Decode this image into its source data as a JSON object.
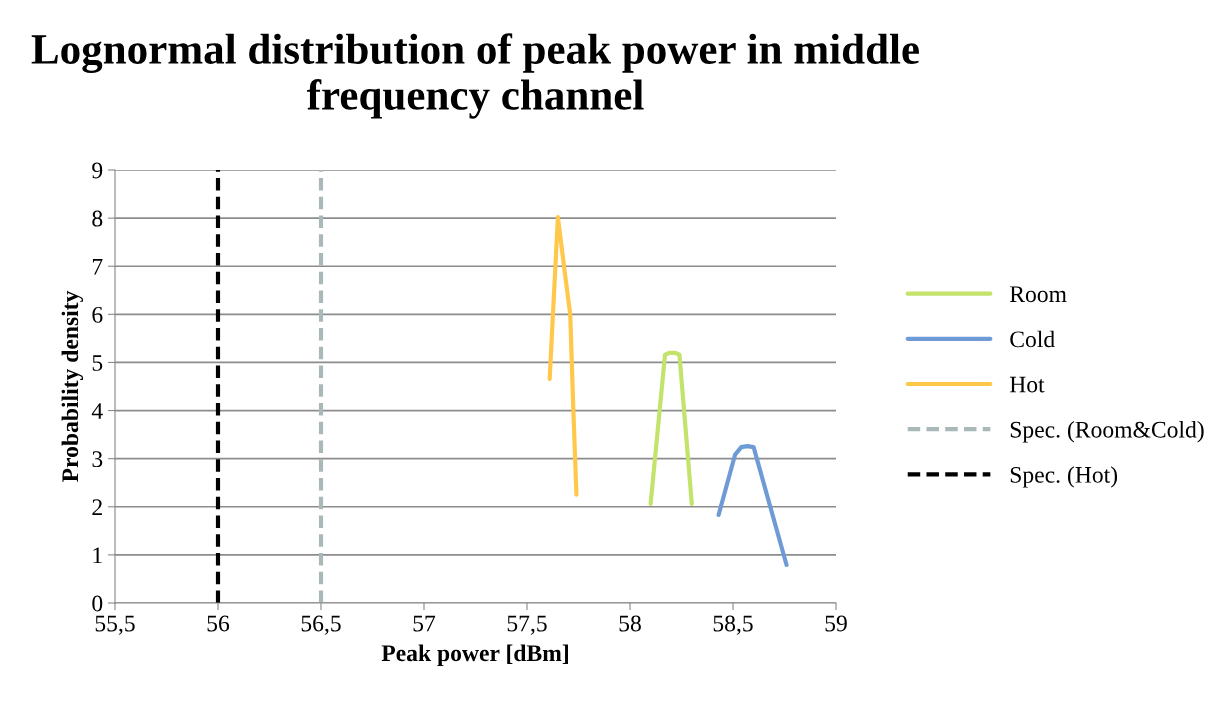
{
  "chart_data": {
    "type": "line",
    "title": "Lognormal distribution of peak power in middle frequency channel",
    "xlabel": "Peak power [dBm]",
    "ylabel": "Probability density",
    "series": [
      {
        "name": "Room",
        "color": "#c3e36b",
        "x": [
          58.1,
          58.17,
          58.19,
          58.205,
          58.22,
          58.24,
          58.3
        ],
        "values": [
          2.06,
          5.16,
          5.2,
          5.2,
          5.2,
          5.16,
          2.06
        ]
      },
      {
        "name": "Cold",
        "color": "#6e9bd6",
        "x": [
          58.43,
          58.51,
          58.54,
          58.57,
          58.6,
          58.76
        ],
        "values": [
          1.83,
          3.08,
          3.24,
          3.26,
          3.24,
          0.79
        ]
      },
      {
        "name": "Hot",
        "color": "#ffc84a",
        "x": [
          57.61,
          57.65,
          57.68,
          57.71,
          57.725,
          57.74
        ],
        "values": [
          4.66,
          8.02,
          6.99,
          5.99,
          4.01,
          2.25
        ]
      },
      {
        "name": "Spec. (Room&Cold)",
        "color": "#a9b8b8",
        "line_style": "dashed",
        "x": [
          56.5,
          56.5
        ],
        "values": [
          0,
          9
        ]
      },
      {
        "name": "Spec. (Hot)",
        "color": "#000000",
        "line_style": "dashed",
        "x": [
          56,
          56
        ],
        "values": [
          0,
          9
        ]
      }
    ],
    "xlim": [
      55.5,
      59
    ],
    "xticks": [
      {
        "value": 55.5,
        "label": "55,5"
      },
      56,
      {
        "value": 56.5,
        "label": "56,5"
      },
      57,
      {
        "value": 57.5,
        "label": "57,5"
      },
      58,
      {
        "value": 58.5,
        "label": "58,5"
      },
      59
    ],
    "ylim": [
      0,
      9
    ],
    "yticks": [
      0,
      1,
      2,
      3,
      4,
      5,
      6,
      7,
      8,
      9
    ],
    "grid": "y",
    "legend": "right",
    "marker": "none",
    "line_style": "solid"
  }
}
